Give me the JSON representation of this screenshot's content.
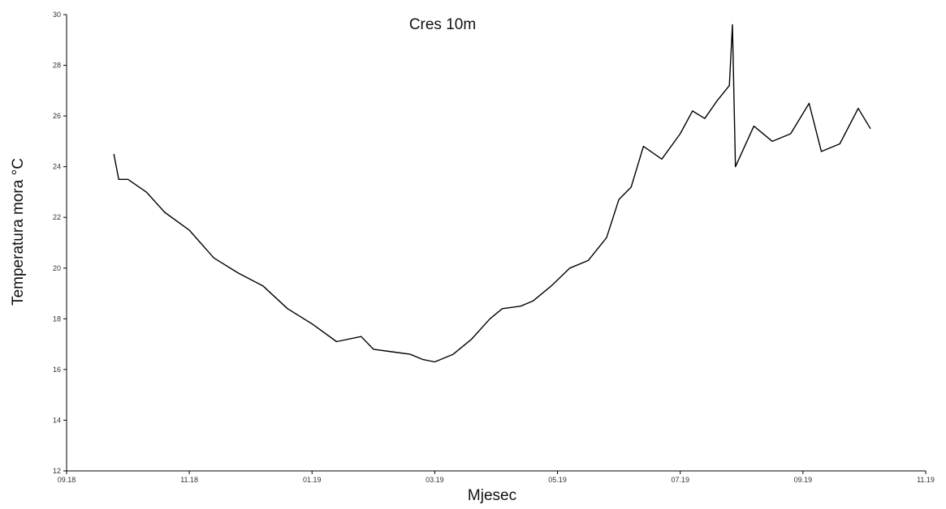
{
  "chart_data": {
    "type": "line",
    "title": "Cres 10m",
    "xlabel": "Mjesec",
    "ylabel": "Temperatura mora °C",
    "x_tick_labels": [
      "09.18",
      "11.18",
      "01.19",
      "03.19",
      "05.19",
      "07.19",
      "09.19",
      "11.19"
    ],
    "y_ticks": [
      12,
      14,
      16,
      18,
      20,
      22,
      24,
      26,
      28,
      30
    ],
    "ylim": [
      12,
      30
    ],
    "xlim_months": [
      0,
      14
    ],
    "grid": false,
    "legend": "none",
    "line_color": "#000000",
    "series": [
      {
        "x_months": [
          0.77,
          0.85,
          1.0,
          1.3,
          1.6,
          2.0,
          2.4,
          2.8,
          3.2,
          3.6,
          4.0,
          4.4,
          4.8,
          5.0,
          5.3,
          5.6,
          5.8,
          6.0,
          6.3,
          6.6,
          6.9,
          7.1,
          7.4,
          7.6,
          7.9,
          8.2,
          8.5,
          8.8,
          9.0,
          9.2,
          9.4,
          9.7,
          10.0,
          10.2,
          10.4,
          10.6,
          10.8,
          10.85,
          10.9,
          11.2,
          11.5,
          11.8,
          12.1,
          12.3,
          12.6,
          12.9,
          13.1
        ],
        "y": [
          24.5,
          23.5,
          23.5,
          23.0,
          22.2,
          21.5,
          20.4,
          19.8,
          19.3,
          18.4,
          17.8,
          17.1,
          17.3,
          16.8,
          16.7,
          16.6,
          16.4,
          16.3,
          16.6,
          17.2,
          18.0,
          18.4,
          18.5,
          18.7,
          19.3,
          20.0,
          20.3,
          21.2,
          22.7,
          23.2,
          24.8,
          24.3,
          25.3,
          26.2,
          25.9,
          26.6,
          27.2,
          29.6,
          24.0,
          25.6,
          25.0,
          25.3,
          26.5,
          24.6,
          24.9,
          26.3,
          25.5
        ]
      }
    ]
  }
}
